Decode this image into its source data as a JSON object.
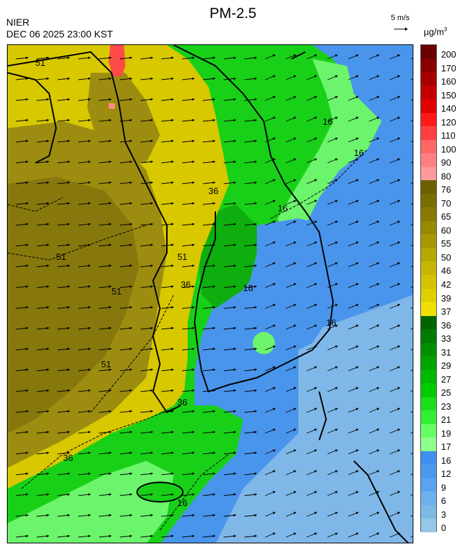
{
  "header": {
    "title": "PM-2.5",
    "agency": "NIER",
    "datetime": "DEC 06 2025 23:00 KST",
    "wind_reference": "5 m/s",
    "unit": "µg/m",
    "unit_exponent": "3"
  },
  "colorbar": {
    "levels": [
      {
        "label": "200",
        "color": "#6b0000"
      },
      {
        "label": "170",
        "color": "#8a0000"
      },
      {
        "label": "160",
        "color": "#a80000"
      },
      {
        "label": "150",
        "color": "#c40000"
      },
      {
        "label": "140",
        "color": "#e00000"
      },
      {
        "label": "120",
        "color": "#ff1a1a"
      },
      {
        "label": "110",
        "color": "#ff4040"
      },
      {
        "label": "100",
        "color": "#ff6666"
      },
      {
        "label": "90",
        "color": "#ff8080"
      },
      {
        "label": "80",
        "color": "#ff9a9a"
      },
      {
        "label": "76",
        "color": "#6b5f00"
      },
      {
        "label": "70",
        "color": "#7a6d00"
      },
      {
        "label": "65",
        "color": "#887a00"
      },
      {
        "label": "60",
        "color": "#978900"
      },
      {
        "label": "55",
        "color": "#a89800"
      },
      {
        "label": "50",
        "color": "#b7a700"
      },
      {
        "label": "46",
        "color": "#c6b600"
      },
      {
        "label": "42",
        "color": "#d4c400"
      },
      {
        "label": "39",
        "color": "#e1d000"
      },
      {
        "label": "37",
        "color": "#f0e000"
      },
      {
        "label": "36",
        "color": "#006400"
      },
      {
        "label": "33",
        "color": "#007a00"
      },
      {
        "label": "31",
        "color": "#008f00"
      },
      {
        "label": "29",
        "color": "#00a300"
      },
      {
        "label": "27",
        "color": "#00b800"
      },
      {
        "label": "25",
        "color": "#00cc00"
      },
      {
        "label": "23",
        "color": "#1ade1a"
      },
      {
        "label": "21",
        "color": "#33ee33"
      },
      {
        "label": "19",
        "color": "#66ff66"
      },
      {
        "label": "17",
        "color": "#8cff8c"
      },
      {
        "label": "16",
        "color": "#3f8ef0"
      },
      {
        "label": "12",
        "color": "#4c99f0"
      },
      {
        "label": "9",
        "color": "#5aa3ef"
      },
      {
        "label": "6",
        "color": "#6eb0ec"
      },
      {
        "label": "3",
        "color": "#7dbae6"
      },
      {
        "label": "0",
        "color": "#95c8e6"
      }
    ]
  },
  "map": {
    "contour_labels": [
      "51",
      "51",
      "51",
      "51",
      "36",
      "36",
      "36",
      "36",
      "16",
      "16",
      "16",
      "16",
      "16",
      "16",
      "51"
    ],
    "colors": {
      "blue_region": "#4a95ec",
      "light_blue": "#8ec2ea",
      "green_dark": "#0fae0f",
      "green_mid": "#18d018",
      "green_light": "#6cf46c",
      "yellow": "#d8c800",
      "olive": "#9c8d10",
      "olive_dark": "#86780c",
      "red": "#ff4a4a",
      "pink": "#ff8a8a",
      "arrow": "#000000",
      "coast": "#000000",
      "admin": "#cccccc"
    }
  }
}
